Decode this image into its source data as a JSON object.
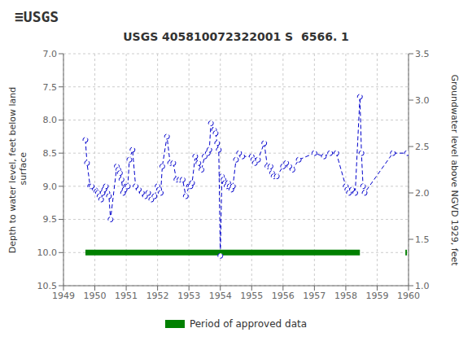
{
  "chart_data": {
    "type": "line",
    "title": "USGS 405810072322001 S  6566. 1",
    "annotations": [
      "≡USGS"
    ],
    "y_label": "Depth to water level, feet below land\n surface",
    "y2_label": "Groundwater level above NGVD 1929, feet",
    "xlim": [
      1949,
      1960
    ],
    "xticks": [
      1949,
      1950,
      1951,
      1952,
      1953,
      1954,
      1955,
      1956,
      1957,
      1958,
      1959,
      1960
    ],
    "ylim": [
      10.5,
      7.0
    ],
    "yticks": [
      {
        "value": 7.0,
        "label": "7.0"
      },
      {
        "value": 7.5,
        "label": "7.5"
      },
      {
        "value": 8.0,
        "label": "8.0"
      },
      {
        "value": 8.5,
        "label": "8.5"
      },
      {
        "value": 9.0,
        "label": "9.0"
      },
      {
        "value": 9.5,
        "label": "9.5"
      },
      {
        "value": 10.0,
        "label": "10.0"
      },
      {
        "value": 10.5,
        "label": "10.5"
      }
    ],
    "y2lim": [
      1.0,
      3.5
    ],
    "y2ticks": [
      {
        "value": 1.0,
        "label": "1.0"
      },
      {
        "value": 1.5,
        "label": "1.5"
      },
      {
        "value": 2.0,
        "label": "2.0"
      },
      {
        "value": 2.5,
        "label": "2.5"
      },
      {
        "value": 3.0,
        "label": "3.0"
      },
      {
        "value": 3.5,
        "label": "3.5"
      }
    ],
    "grid": true,
    "legend": "bottom",
    "series": [
      {
        "type": "line",
        "color": "#0000cc",
        "marker": "o",
        "line_style": "dashed",
        "x": [
          1949.7,
          1949.75,
          1949.85,
          1949.9,
          1950.0,
          1950.05,
          1950.1,
          1950.15,
          1950.2,
          1950.25,
          1950.3,
          1950.35,
          1950.4,
          1950.45,
          1950.5,
          1950.7,
          1950.75,
          1950.8,
          1950.85,
          1950.9,
          1950.95,
          1951.0,
          1951.05,
          1951.1,
          1951.2,
          1951.3,
          1951.4,
          1951.5,
          1951.6,
          1951.7,
          1951.8,
          1951.9,
          1952.0,
          1952.05,
          1952.1,
          1952.15,
          1952.3,
          1952.4,
          1952.5,
          1952.6,
          1952.7,
          1952.8,
          1952.9,
          1953.0,
          1953.05,
          1953.1,
          1953.2,
          1953.3,
          1953.4,
          1953.5,
          1953.6,
          1953.65,
          1953.7,
          1953.8,
          1953.85,
          1953.9,
          1953.95,
          1954.0,
          1954.05,
          1954.1,
          1954.15,
          1954.2,
          1954.25,
          1954.3,
          1954.35,
          1954.4,
          1954.5,
          1954.6,
          1954.7,
          1955.0,
          1955.05,
          1955.1,
          1955.2,
          1955.4,
          1955.5,
          1955.6,
          1955.65,
          1955.7,
          1955.8,
          1956.0,
          1956.1,
          1956.2,
          1956.3,
          1956.5,
          1957.0,
          1957.3,
          1957.5,
          1957.7,
          1958.0,
          1958.05,
          1958.1,
          1958.2,
          1958.3,
          1958.45,
          1958.5,
          1958.55,
          1958.6,
          1959.5,
          1959.95
        ],
        "values": [
          8.3,
          8.65,
          9.0,
          9.0,
          9.05,
          9.08,
          9.1,
          9.15,
          9.2,
          9.1,
          9.05,
          9.0,
          9.1,
          9.15,
          9.5,
          8.7,
          8.75,
          8.8,
          8.9,
          9.1,
          9.05,
          9.0,
          9.0,
          8.6,
          8.45,
          9.0,
          9.05,
          9.1,
          9.15,
          9.1,
          9.2,
          9.15,
          9.0,
          9.05,
          9.1,
          8.7,
          8.25,
          8.65,
          8.65,
          8.9,
          8.9,
          8.9,
          9.15,
          9.0,
          9.0,
          8.95,
          8.55,
          8.65,
          8.75,
          8.55,
          8.5,
          8.45,
          8.05,
          8.15,
          8.2,
          8.35,
          8.45,
          10.05,
          8.85,
          8.9,
          8.95,
          9.0,
          8.95,
          9.0,
          9.05,
          9.0,
          8.6,
          8.5,
          8.55,
          8.55,
          8.6,
          8.65,
          8.6,
          8.35,
          8.7,
          8.7,
          8.8,
          8.85,
          8.85,
          8.7,
          8.65,
          8.7,
          8.75,
          8.6,
          8.5,
          8.55,
          8.5,
          8.5,
          9.0,
          9.05,
          9.1,
          9.05,
          9.1,
          7.65,
          8.5,
          9.0,
          9.1,
          8.5,
          8.5
        ]
      },
      {
        "name": "Period of approved data",
        "type": "range_bar",
        "color": "#008000",
        "y": 10.0,
        "ranges": [
          [
            1949.7,
            1958.45
          ],
          [
            1959.9,
            1959.95
          ]
        ]
      }
    ]
  }
}
